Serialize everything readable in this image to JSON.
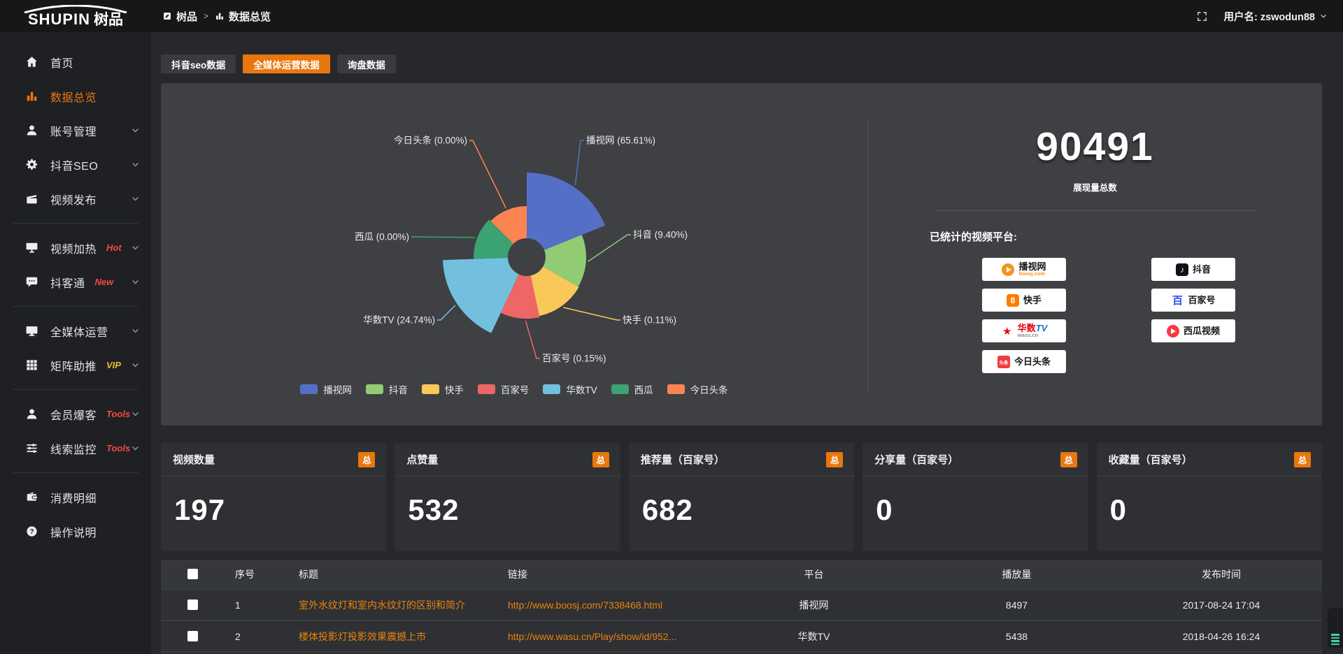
{
  "colors": {
    "accent": "#e8770e",
    "link": "#e8830f",
    "hot": "#f5483f",
    "vip": "#f0b73d",
    "topbar-bg": "#161719",
    "sidebar-bg": "#1e2023",
    "page-bg": "#27282b",
    "panel-bg": "#3e4043",
    "card-bg": "#2e3033",
    "thead-bg": "#35373a",
    "teal": "#3fd3a6"
  },
  "topbar": {
    "logo_en": "SHUPIN",
    "logo_cn": "树品",
    "breadcrumb_home": "树品",
    "breadcrumb_sep": ">",
    "breadcrumb_current": "数据总览",
    "username": "用户名: zswodun88"
  },
  "sidebar": {
    "items": [
      {
        "label": "首页",
        "badge": ""
      },
      {
        "label": "数据总览",
        "badge": ""
      },
      {
        "label": "账号管理",
        "badge": ""
      },
      {
        "label": "抖音SEO",
        "badge": ""
      },
      {
        "label": "视频发布",
        "badge": ""
      },
      {
        "label": "视频加热",
        "badge": "Hot"
      },
      {
        "label": "抖客通",
        "badge": "New"
      },
      {
        "label": "全媒体运营",
        "badge": ""
      },
      {
        "label": "矩阵助推",
        "badge": "VIP"
      },
      {
        "label": "会员爆客",
        "badge": "Tools"
      },
      {
        "label": "线索监控",
        "badge": "Tools"
      },
      {
        "label": "消费明细",
        "badge": ""
      },
      {
        "label": "操作说明",
        "badge": ""
      }
    ]
  },
  "tabs": [
    {
      "label": "抖音seo数据"
    },
    {
      "label": "全媒体运营数据"
    },
    {
      "label": "询盘数据"
    }
  ],
  "chart_data": {
    "type": "pie",
    "variant": "nightingale-rose",
    "title": "",
    "legend_position": "bottom",
    "slices": [
      {
        "name": "播视网",
        "pct": 65.61,
        "label": "播视网 (65.61%)",
        "color": "#5470c6"
      },
      {
        "name": "抖音",
        "pct": 9.4,
        "label": "抖音 (9.40%)",
        "color": "#91cc75"
      },
      {
        "name": "快手",
        "pct": 0.11,
        "label": "快手 (0.11%)",
        "color": "#fac858"
      },
      {
        "name": "百家号",
        "pct": 0.15,
        "label": "百家号 (0.15%)",
        "color": "#ee6666"
      },
      {
        "name": "华数TV",
        "pct": 24.74,
        "label": "华数TV (24.74%)",
        "color": "#73c0de"
      },
      {
        "name": "西瓜",
        "pct": 0.0,
        "label": "西瓜 (0.00%)",
        "color": "#3ba272"
      },
      {
        "name": "今日头条",
        "pct": 0.0,
        "label": "今日头条 (0.00%)",
        "color": "#fc8452"
      }
    ]
  },
  "summary": {
    "total": "90491",
    "total_label": "展现量总数",
    "platforms_title": "已统计的视频平台:",
    "platforms": [
      {
        "name": "播视网",
        "sub": "boosj.com"
      },
      {
        "name": "抖音",
        "sub": ""
      },
      {
        "name": "快手",
        "sub": ""
      },
      {
        "name": "百家号",
        "sub": ""
      },
      {
        "name": "华数",
        "name_en": "TV",
        "sub": "wasu.cn"
      },
      {
        "name": "西瓜视频",
        "sub": ""
      },
      {
        "name": "今日头条",
        "sub": ""
      }
    ]
  },
  "stat_cards": [
    {
      "title": "视频数量",
      "badge": "总",
      "value": "197"
    },
    {
      "title": "点赞量",
      "badge": "总",
      "value": "532"
    },
    {
      "title": "推荐量（百家号）",
      "badge": "总",
      "value": "682"
    },
    {
      "title": "分享量（百家号）",
      "badge": "总",
      "value": "0"
    },
    {
      "title": "收藏量（百家号）",
      "badge": "总",
      "value": "0"
    }
  ],
  "table": {
    "headers": {
      "num": "序号",
      "title": "标题",
      "link": "链接",
      "platform": "平台",
      "views": "播放量",
      "time": "发布时间"
    },
    "rows": [
      {
        "num": "1",
        "title": "室外水纹灯和室内水纹灯的区别和简介",
        "link": "http://www.boosj.com/7338468.html",
        "platform": "播视网",
        "views": "8497",
        "time": "2017-08-24 17:04"
      },
      {
        "num": "2",
        "title": "楼体投影灯投影效果震撼上市",
        "link": "http://www.wasu.cn/Play/show/id/952...",
        "platform": "华数TV",
        "views": "5438",
        "time": "2018-04-26 16:24"
      }
    ]
  }
}
